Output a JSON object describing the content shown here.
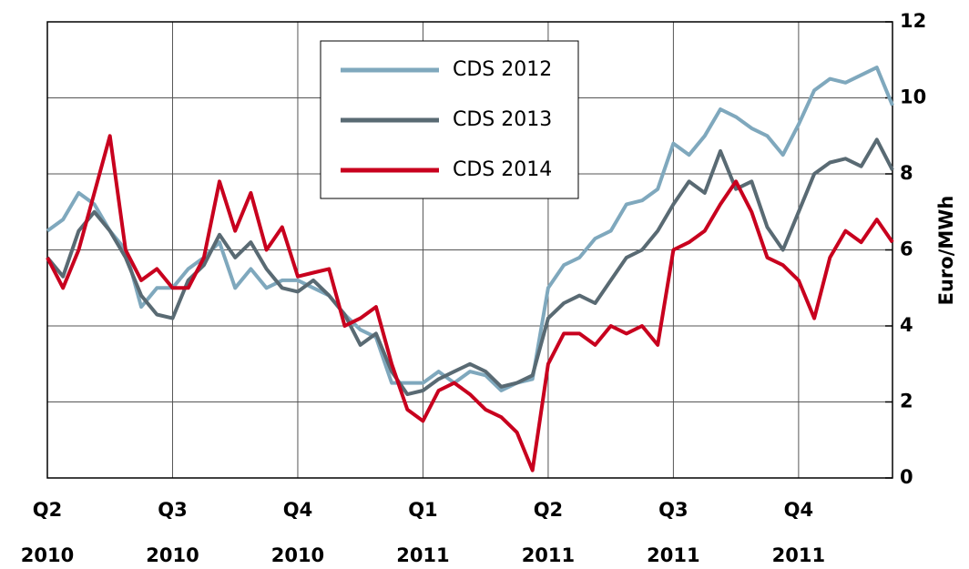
{
  "chart_data": {
    "type": "line",
    "categories": [
      "Q2 2010",
      null,
      null,
      null,
      null,
      null,
      null,
      null,
      "Q3 2010",
      null,
      null,
      null,
      null,
      null,
      null,
      null,
      "Q4 2010",
      null,
      null,
      null,
      null,
      null,
      null,
      null,
      "Q1 2011",
      null,
      null,
      null,
      null,
      null,
      null,
      null,
      "Q2 2011",
      null,
      null,
      null,
      null,
      null,
      null,
      null,
      "Q3 2011",
      null,
      null,
      null,
      null,
      null,
      null,
      null,
      "Q4 2011",
      null,
      null,
      null,
      null,
      null,
      null
    ],
    "series": [
      {
        "name": "CDS 2012",
        "color": "#7fa8bd",
        "values": [
          6.5,
          6.8,
          7.5,
          7.2,
          6.5,
          6.0,
          4.5,
          5.0,
          5.0,
          5.5,
          5.8,
          6.2,
          5.0,
          5.5,
          5.0,
          5.2,
          5.2,
          5.0,
          4.8,
          4.3,
          3.9,
          3.7,
          2.5,
          2.5,
          2.5,
          2.8,
          2.5,
          2.8,
          2.7,
          2.3,
          2.5,
          2.6,
          5.0,
          5.6,
          5.8,
          6.3,
          6.5,
          7.2,
          7.3,
          7.6,
          8.8,
          8.5,
          9.0,
          9.7,
          9.5,
          9.2,
          9.0,
          8.5,
          9.3,
          10.2,
          10.5,
          10.4,
          10.6,
          10.8,
          9.8
        ]
      },
      {
        "name": "CDS 2013",
        "color": "#596a73",
        "values": [
          5.8,
          5.3,
          6.5,
          7.0,
          6.5,
          5.8,
          4.8,
          4.3,
          4.2,
          5.2,
          5.6,
          6.4,
          5.8,
          6.2,
          5.5,
          5.0,
          4.9,
          5.2,
          4.8,
          4.3,
          3.5,
          3.8,
          2.8,
          2.2,
          2.3,
          2.6,
          2.8,
          3.0,
          2.8,
          2.4,
          2.5,
          2.7,
          4.2,
          4.6,
          4.8,
          4.6,
          5.2,
          5.8,
          6.0,
          6.5,
          7.2,
          7.8,
          7.5,
          8.6,
          7.6,
          7.8,
          6.6,
          6.0,
          7.0,
          8.0,
          8.3,
          8.4,
          8.2,
          8.9,
          8.1
        ]
      },
      {
        "name": "CDS 2014",
        "color": "#c8001e",
        "values": [
          5.8,
          5.0,
          6.0,
          7.5,
          9.0,
          6.0,
          5.2,
          5.5,
          5.0,
          5.0,
          5.8,
          7.8,
          6.5,
          7.5,
          6.0,
          6.6,
          5.3,
          5.4,
          5.5,
          4.0,
          4.2,
          4.5,
          3.0,
          1.8,
          1.5,
          2.3,
          2.5,
          2.2,
          1.8,
          1.6,
          1.2,
          0.2,
          3.0,
          3.8,
          3.8,
          3.5,
          4.0,
          3.8,
          4.0,
          3.5,
          6.0,
          6.2,
          6.5,
          7.2,
          7.8,
          7.0,
          5.8,
          5.6,
          5.2,
          4.2,
          5.8,
          6.5,
          6.2,
          6.8,
          6.2
        ]
      }
    ],
    "y_label": "Euro/MWh",
    "ylim": [
      0,
      12
    ],
    "yticks": [
      0,
      2,
      4,
      6,
      8,
      10,
      12
    ],
    "grid": true,
    "legend": "upper center"
  }
}
